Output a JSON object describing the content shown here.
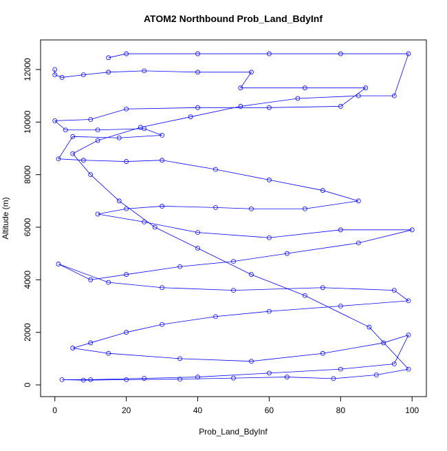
{
  "chart_data": {
    "type": "line",
    "title": "ATOM2 Northbound Prob_Land_BdyInf",
    "x_label": "Prob_Land_BdyInf",
    "y_label": "Altitude (m)",
    "color": "#0000ff",
    "xlim": [
      -4,
      104
    ],
    "ylim": [
      -445,
      13126
    ],
    "xticks": [
      0,
      20,
      40,
      60,
      80,
      100
    ],
    "yticks": [
      0,
      2000,
      4000,
      6000,
      8000,
      10000,
      12000
    ],
    "x": [
      0,
      0,
      2,
      8,
      15,
      25,
      40,
      55,
      52,
      70,
      87,
      80,
      60,
      40,
      20,
      10,
      0,
      3,
      12,
      25,
      30,
      18,
      5,
      1,
      8,
      20,
      30,
      45,
      60,
      75,
      85,
      70,
      55,
      45,
      30,
      20,
      12,
      25,
      40,
      60,
      80,
      100,
      85,
      65,
      50,
      35,
      20,
      10,
      1,
      15,
      30,
      50,
      75,
      95,
      99,
      80,
      60,
      45,
      30,
      20,
      10,
      5,
      15,
      35,
      55,
      75,
      92,
      99,
      95,
      80,
      60,
      40,
      25,
      10,
      2,
      8,
      20,
      35,
      50,
      65,
      78,
      90,
      99,
      88,
      70,
      55,
      40,
      28,
      18,
      10,
      5,
      12,
      24,
      38,
      52,
      68,
      85,
      95,
      99,
      80,
      60,
      40,
      20,
      15
    ],
    "values": [
      12000,
      11800,
      11700,
      11800,
      11900,
      11950,
      11900,
      11900,
      11300,
      11300,
      11300,
      10600,
      10550,
      10550,
      10500,
      10100,
      10050,
      9700,
      9700,
      9750,
      9500,
      9400,
      9450,
      8600,
      8550,
      8500,
      8550,
      8200,
      7800,
      7400,
      7000,
      6700,
      6700,
      6750,
      6800,
      6700,
      6500,
      6200,
      5800,
      5600,
      5900,
      5900,
      5400,
      5000,
      4700,
      4500,
      4200,
      4000,
      4600,
      3900,
      3700,
      3600,
      3700,
      3600,
      3200,
      3000,
      2800,
      2600,
      2300,
      2000,
      1600,
      1400,
      1200,
      1000,
      900,
      1200,
      1600,
      1900,
      800,
      600,
      450,
      300,
      250,
      200,
      200,
      180,
      200,
      220,
      260,
      300,
      240,
      380,
      600,
      2200,
      3400,
      4200,
      5200,
      6000,
      7000,
      8000,
      8800,
      9300,
      9800,
      10200,
      10600,
      10900,
      11000,
      11000,
      12600,
      12600,
      12600,
      12600,
      12600,
      12450
    ]
  }
}
